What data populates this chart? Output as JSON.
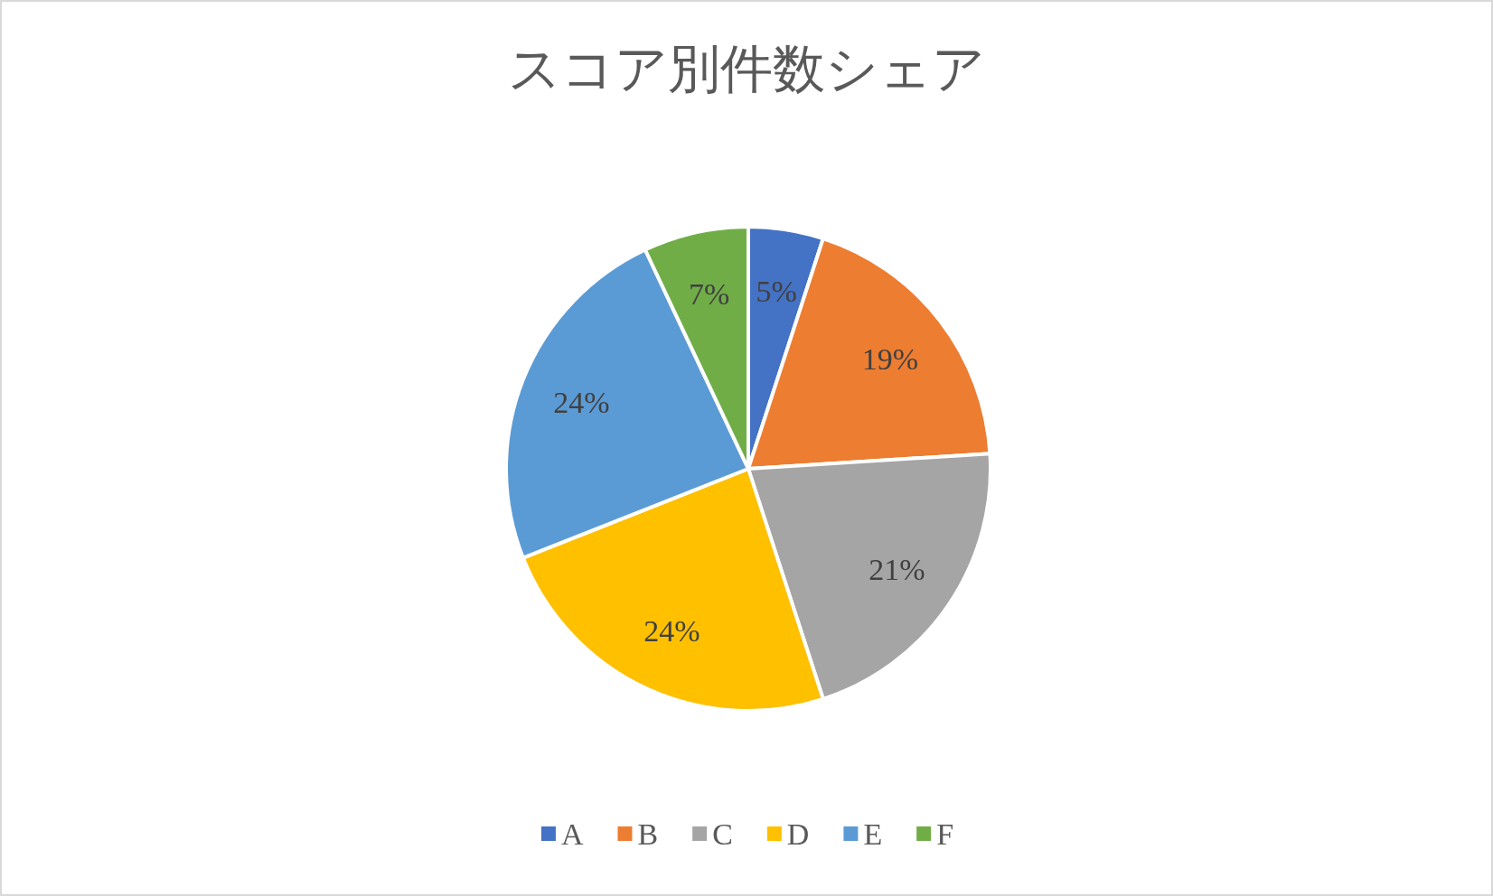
{
  "chart_data": {
    "type": "pie",
    "title": "スコア別件数シェア",
    "categories": [
      "A",
      "B",
      "C",
      "D",
      "E",
      "F"
    ],
    "values": [
      5,
      19,
      21,
      24,
      24,
      7
    ],
    "value_labels": [
      "5%",
      "19%",
      "21%",
      "24%",
      "24%",
      "7%"
    ],
    "colors": [
      "#4472c4",
      "#ed7d31",
      "#a5a5a5",
      "#ffc000",
      "#5b9bd5",
      "#70ad47"
    ],
    "legend": "bottom"
  }
}
